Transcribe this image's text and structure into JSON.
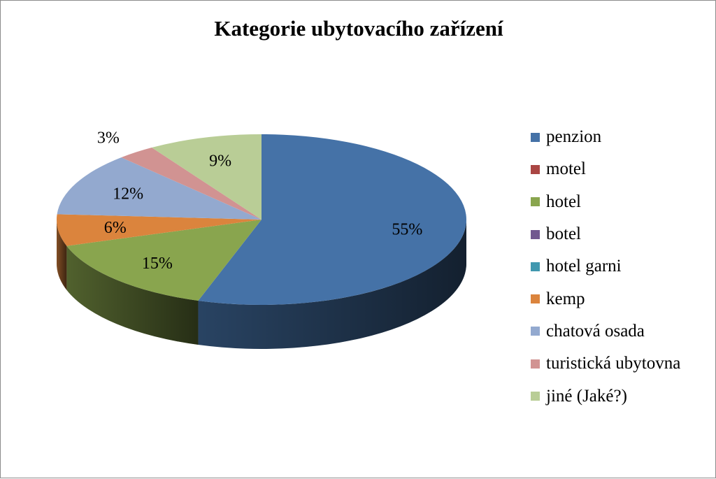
{
  "chart_data": {
    "type": "pie",
    "title": "Kategorie ubytovacího zařízení",
    "legend_position": "right",
    "slices": [
      {
        "name": "penzion",
        "value": 55,
        "label": "55%",
        "color": "#4572A7"
      },
      {
        "name": "motel",
        "value": 0,
        "label": "",
        "color": "#AA4643"
      },
      {
        "name": "hotel",
        "value": 15,
        "label": "15%",
        "color": "#89A54E"
      },
      {
        "name": "botel",
        "value": 0,
        "label": "",
        "color": "#71588F"
      },
      {
        "name": "hotel garni",
        "value": 0,
        "label": "",
        "color": "#4198AF"
      },
      {
        "name": "kemp",
        "value": 6,
        "label": "6%",
        "color": "#DB843D"
      },
      {
        "name": "chatová osada",
        "value": 12,
        "label": "12%",
        "color": "#93A9CF"
      },
      {
        "name": "turistická ubytovna",
        "value": 3,
        "label": "3%",
        "color": "#D19392"
      },
      {
        "name": "jiné (Jaké?)",
        "value": 9,
        "label": "9%",
        "color": "#B9CD96"
      }
    ]
  }
}
